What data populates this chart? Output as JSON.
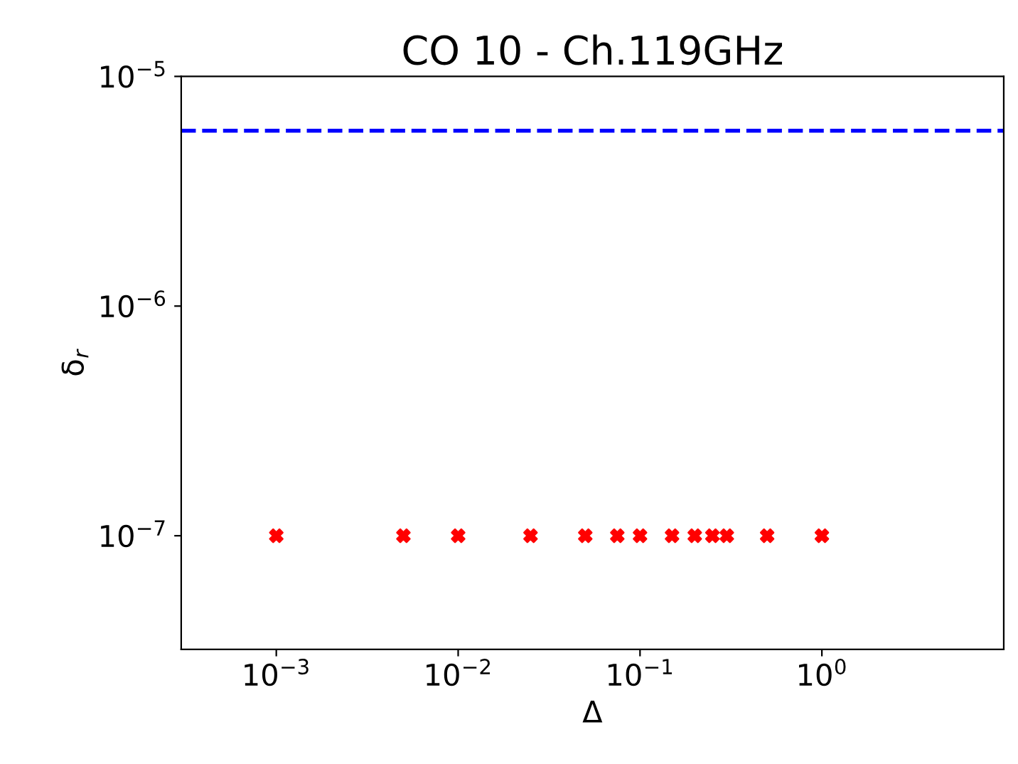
{
  "chart_data": {
    "type": "scatter",
    "title": "CO 10 - Ch.119GHz",
    "xlabel": "Δ",
    "ylabel": "δ$_{r}$",
    "log": "xy",
    "x": [
      0.001,
      0.005,
      0.01,
      0.025,
      0.05,
      0.075,
      0.1,
      0.15,
      0.2,
      0.25,
      0.3,
      0.5,
      1
    ],
    "series": [
      {
        "color": "#ff0000",
        "values": [
          1e-07,
          1e-07,
          1e-07,
          1e-07,
          1e-07,
          1e-07,
          1e-07,
          1e-07,
          1e-07,
          1e-07,
          1e-07,
          1e-07,
          1e-07
        ]
      }
    ],
    "marker": "cross",
    "xlim": [
      0.0003,
      10
    ],
    "ylim": [
      3.2e-08,
      1e-05
    ],
    "xticks": [
      {
        "value": 0.001,
        "label": "10$^{−3}$"
      },
      {
        "value": 0.01,
        "label": "10$^{−2}$"
      },
      {
        "value": 0.1,
        "label": "10$^{−1}$"
      },
      {
        "value": 1,
        "label": "10$^{0}$"
      }
    ],
    "yticks": [
      {
        "value": 1e-07,
        "label": "10$^{−7}$"
      },
      {
        "value": 1e-06,
        "label": "10$^{−6}$"
      },
      {
        "value": 1e-05,
        "label": "10$^{−5}$"
      }
    ],
    "ref_lines": [
      {
        "axis": "y",
        "value": 5.8e-06,
        "label": null,
        "color": "#0000ff",
        "line_style": "dashed"
      }
    ],
    "grid": false,
    "legend": false
  }
}
